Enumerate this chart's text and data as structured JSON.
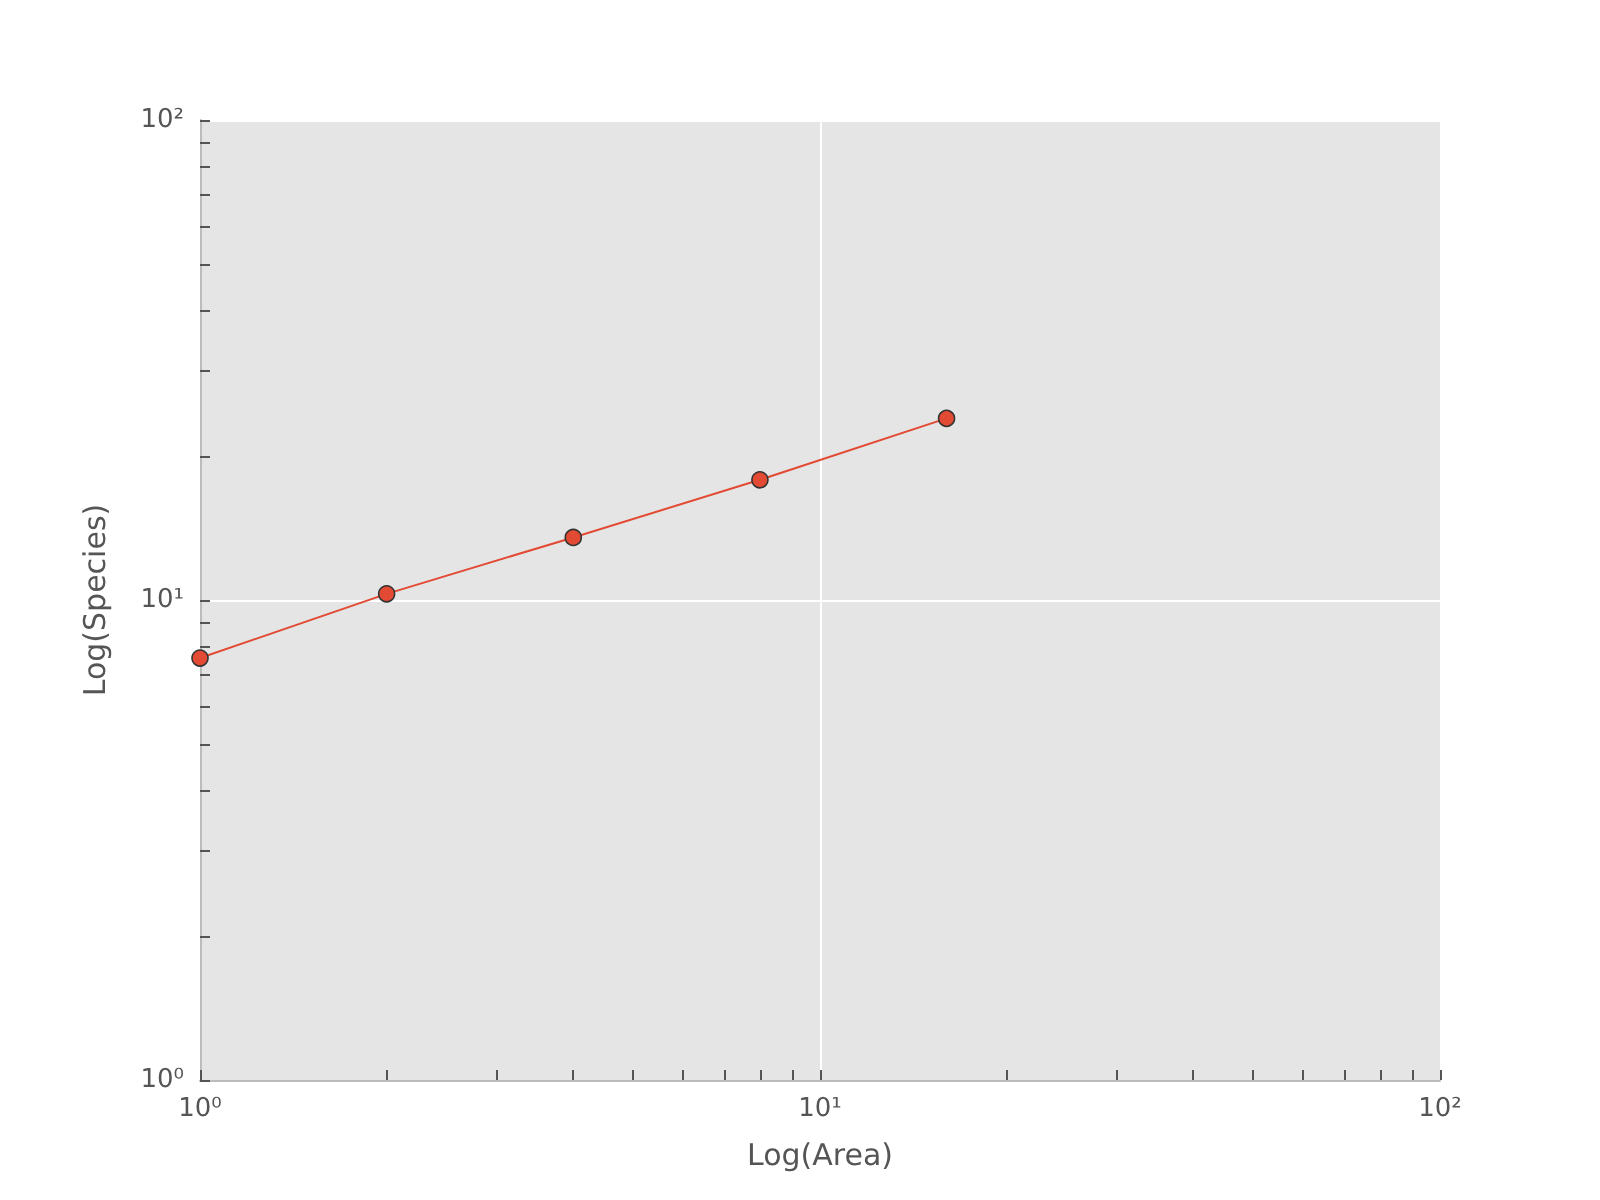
{
  "chart_data": {
    "type": "line",
    "xlabel": "Log(Area)",
    "ylabel": "Log(Species)",
    "log": "xy",
    "grid": true,
    "marker": "circle",
    "line_style": "solid",
    "x": [
      1,
      2,
      4,
      8,
      16
    ],
    "series": [
      {
        "color": "#e24a33",
        "values": [
          7.57,
          10.3,
          13.5,
          17.8,
          23.9
        ]
      }
    ],
    "xlim": [
      1,
      100
    ],
    "ylim": [
      1,
      100
    ],
    "xticks": [
      {
        "value": 1,
        "label": "10⁰"
      },
      {
        "value": 2,
        "label": null
      },
      {
        "value": 3,
        "label": null
      },
      {
        "value": 4,
        "label": null
      },
      {
        "value": 5,
        "label": null
      },
      {
        "value": 6,
        "label": null
      },
      {
        "value": 7,
        "label": null
      },
      {
        "value": 8,
        "label": null
      },
      {
        "value": 9,
        "label": null
      },
      {
        "value": 10,
        "label": "10¹"
      },
      {
        "value": 20,
        "label": null
      },
      {
        "value": 30,
        "label": null
      },
      {
        "value": 40,
        "label": null
      },
      {
        "value": 50,
        "label": null
      },
      {
        "value": 60,
        "label": null
      },
      {
        "value": 70,
        "label": null
      },
      {
        "value": 80,
        "label": null
      },
      {
        "value": 90,
        "label": null
      },
      {
        "value": 100,
        "label": "10²"
      }
    ],
    "yticks": [
      {
        "value": 1,
        "label": "10⁰"
      },
      {
        "value": 2,
        "label": null
      },
      {
        "value": 3,
        "label": null
      },
      {
        "value": 4,
        "label": null
      },
      {
        "value": 5,
        "label": null
      },
      {
        "value": 6,
        "label": null
      },
      {
        "value": 7,
        "label": null
      },
      {
        "value": 8,
        "label": null
      },
      {
        "value": 9,
        "label": null
      },
      {
        "value": 10,
        "label": "10¹"
      },
      {
        "value": 20,
        "label": null
      },
      {
        "value": 30,
        "label": null
      },
      {
        "value": 40,
        "label": null
      },
      {
        "value": 50,
        "label": null
      },
      {
        "value": 60,
        "label": null
      },
      {
        "value": 70,
        "label": null
      },
      {
        "value": 80,
        "label": null
      },
      {
        "value": 90,
        "label": null
      },
      {
        "value": 100,
        "label": "10²"
      }
    ]
  }
}
